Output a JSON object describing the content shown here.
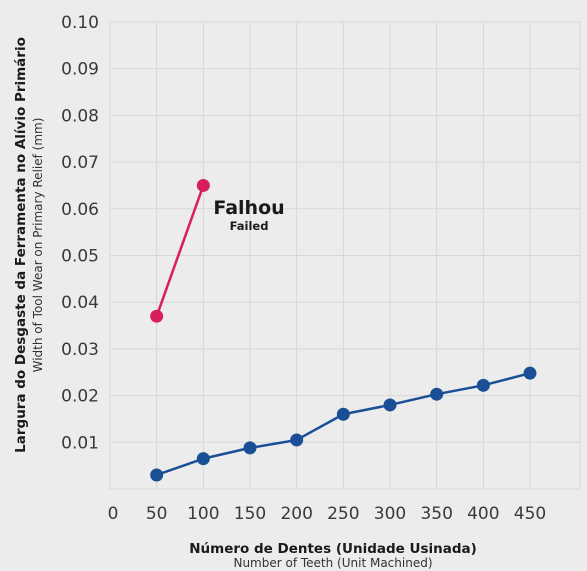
{
  "chart_data": {
    "type": "line",
    "xlabel": "Número de Dentes (Unidade Usinada)",
    "xlabel_sub": "Number of Teeth (Unit Machined)",
    "ylabel": "Largura do Desgaste da Ferramenta no Alívio Primário",
    "ylabel_sub": "Width of Tool Wear on Primary Relief (mm)",
    "xlim": [
      0,
      450
    ],
    "ylim": [
      0,
      0.1
    ],
    "x_ticks": [
      "0",
      "50",
      "100",
      "150",
      "200",
      "250",
      "300",
      "350",
      "400",
      "450"
    ],
    "y_ticks": [
      "0.01",
      "0.02",
      "0.03",
      "0.04",
      "0.05",
      "0.06",
      "0.07",
      "0.08",
      "0.09",
      "0.10"
    ],
    "grid": true,
    "series": [
      {
        "color": "#d81e5b",
        "x": [
          50,
          100
        ],
        "y": [
          0.037,
          0.065
        ]
      },
      {
        "color": "#1a4f95",
        "x": [
          50,
          100,
          150,
          200,
          250,
          300,
          350,
          400,
          450
        ],
        "y": [
          0.003,
          0.0065,
          0.0088,
          0.0105,
          0.016,
          0.018,
          0.0203,
          0.0222,
          0.0248
        ]
      }
    ],
    "annotation": {
      "text": "Falhou",
      "subtext": "Failed"
    }
  }
}
